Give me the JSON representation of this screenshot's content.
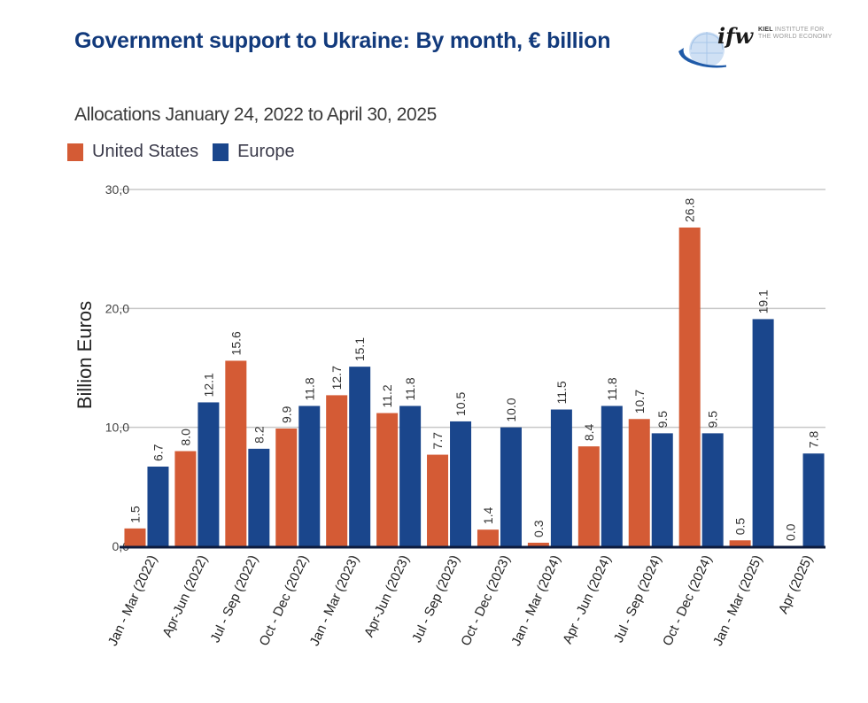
{
  "header": {
    "title": "Government support to Ukraine: By month, € billion",
    "subtitle": "Allocations January 24, 2022 to April 30, 2025"
  },
  "logo": {
    "mark": "ifw",
    "org_line1": "KIEL",
    "org_line1_rest": " INSTITUTE FOR",
    "org_line2": "THE WORLD ECONOMY",
    "icon": "globe-icon"
  },
  "colors": {
    "united_states": "#d45b35",
    "europe": "#1a468c",
    "title": "#123a7c",
    "gridline": "#c8c8c8",
    "axis": "#0d1b3d"
  },
  "chart_data": {
    "type": "bar",
    "title": "Government support to Ukraine: By month, € billion",
    "subtitle": "Allocations January 24, 2022 to April 30, 2025",
    "xlabel": "",
    "ylabel": "Billion Euros",
    "ylim": [
      0,
      30
    ],
    "yticks": [
      0,
      10,
      20,
      30
    ],
    "ytick_labels": [
      "0,0",
      "10,0",
      "20,0",
      "30,0"
    ],
    "grid": true,
    "legend_position": "top-left",
    "categories": [
      "Jan - Mar (2022)",
      "Apr-Jun (2022)",
      "Jul - Sep (2022)",
      "Oct - Dec (2022)",
      "Jan - Mar (2023)",
      "Apr-Jun (2023)",
      "Jul - Sep (2023)",
      "Oct - Dec (2023)",
      "Jan - Mar (2024)",
      "Apr - Jun (2024)",
      "Jul - Sep (2024)",
      "Oct - Dec (2024)",
      "Jan - Mar (2025)",
      "Apr (2025)"
    ],
    "series": [
      {
        "name": "United States",
        "color": "#d45b35",
        "values": [
          1.5,
          8.0,
          15.6,
          9.9,
          12.7,
          11.2,
          7.7,
          1.4,
          0.3,
          8.4,
          10.7,
          26.8,
          0.5,
          0.0
        ]
      },
      {
        "name": "Europe",
        "color": "#1a468c",
        "values": [
          6.7,
          12.1,
          8.2,
          11.8,
          15.1,
          11.8,
          10.5,
          10.0,
          11.5,
          11.8,
          9.5,
          9.5,
          19.1,
          7.8
        ]
      }
    ]
  }
}
